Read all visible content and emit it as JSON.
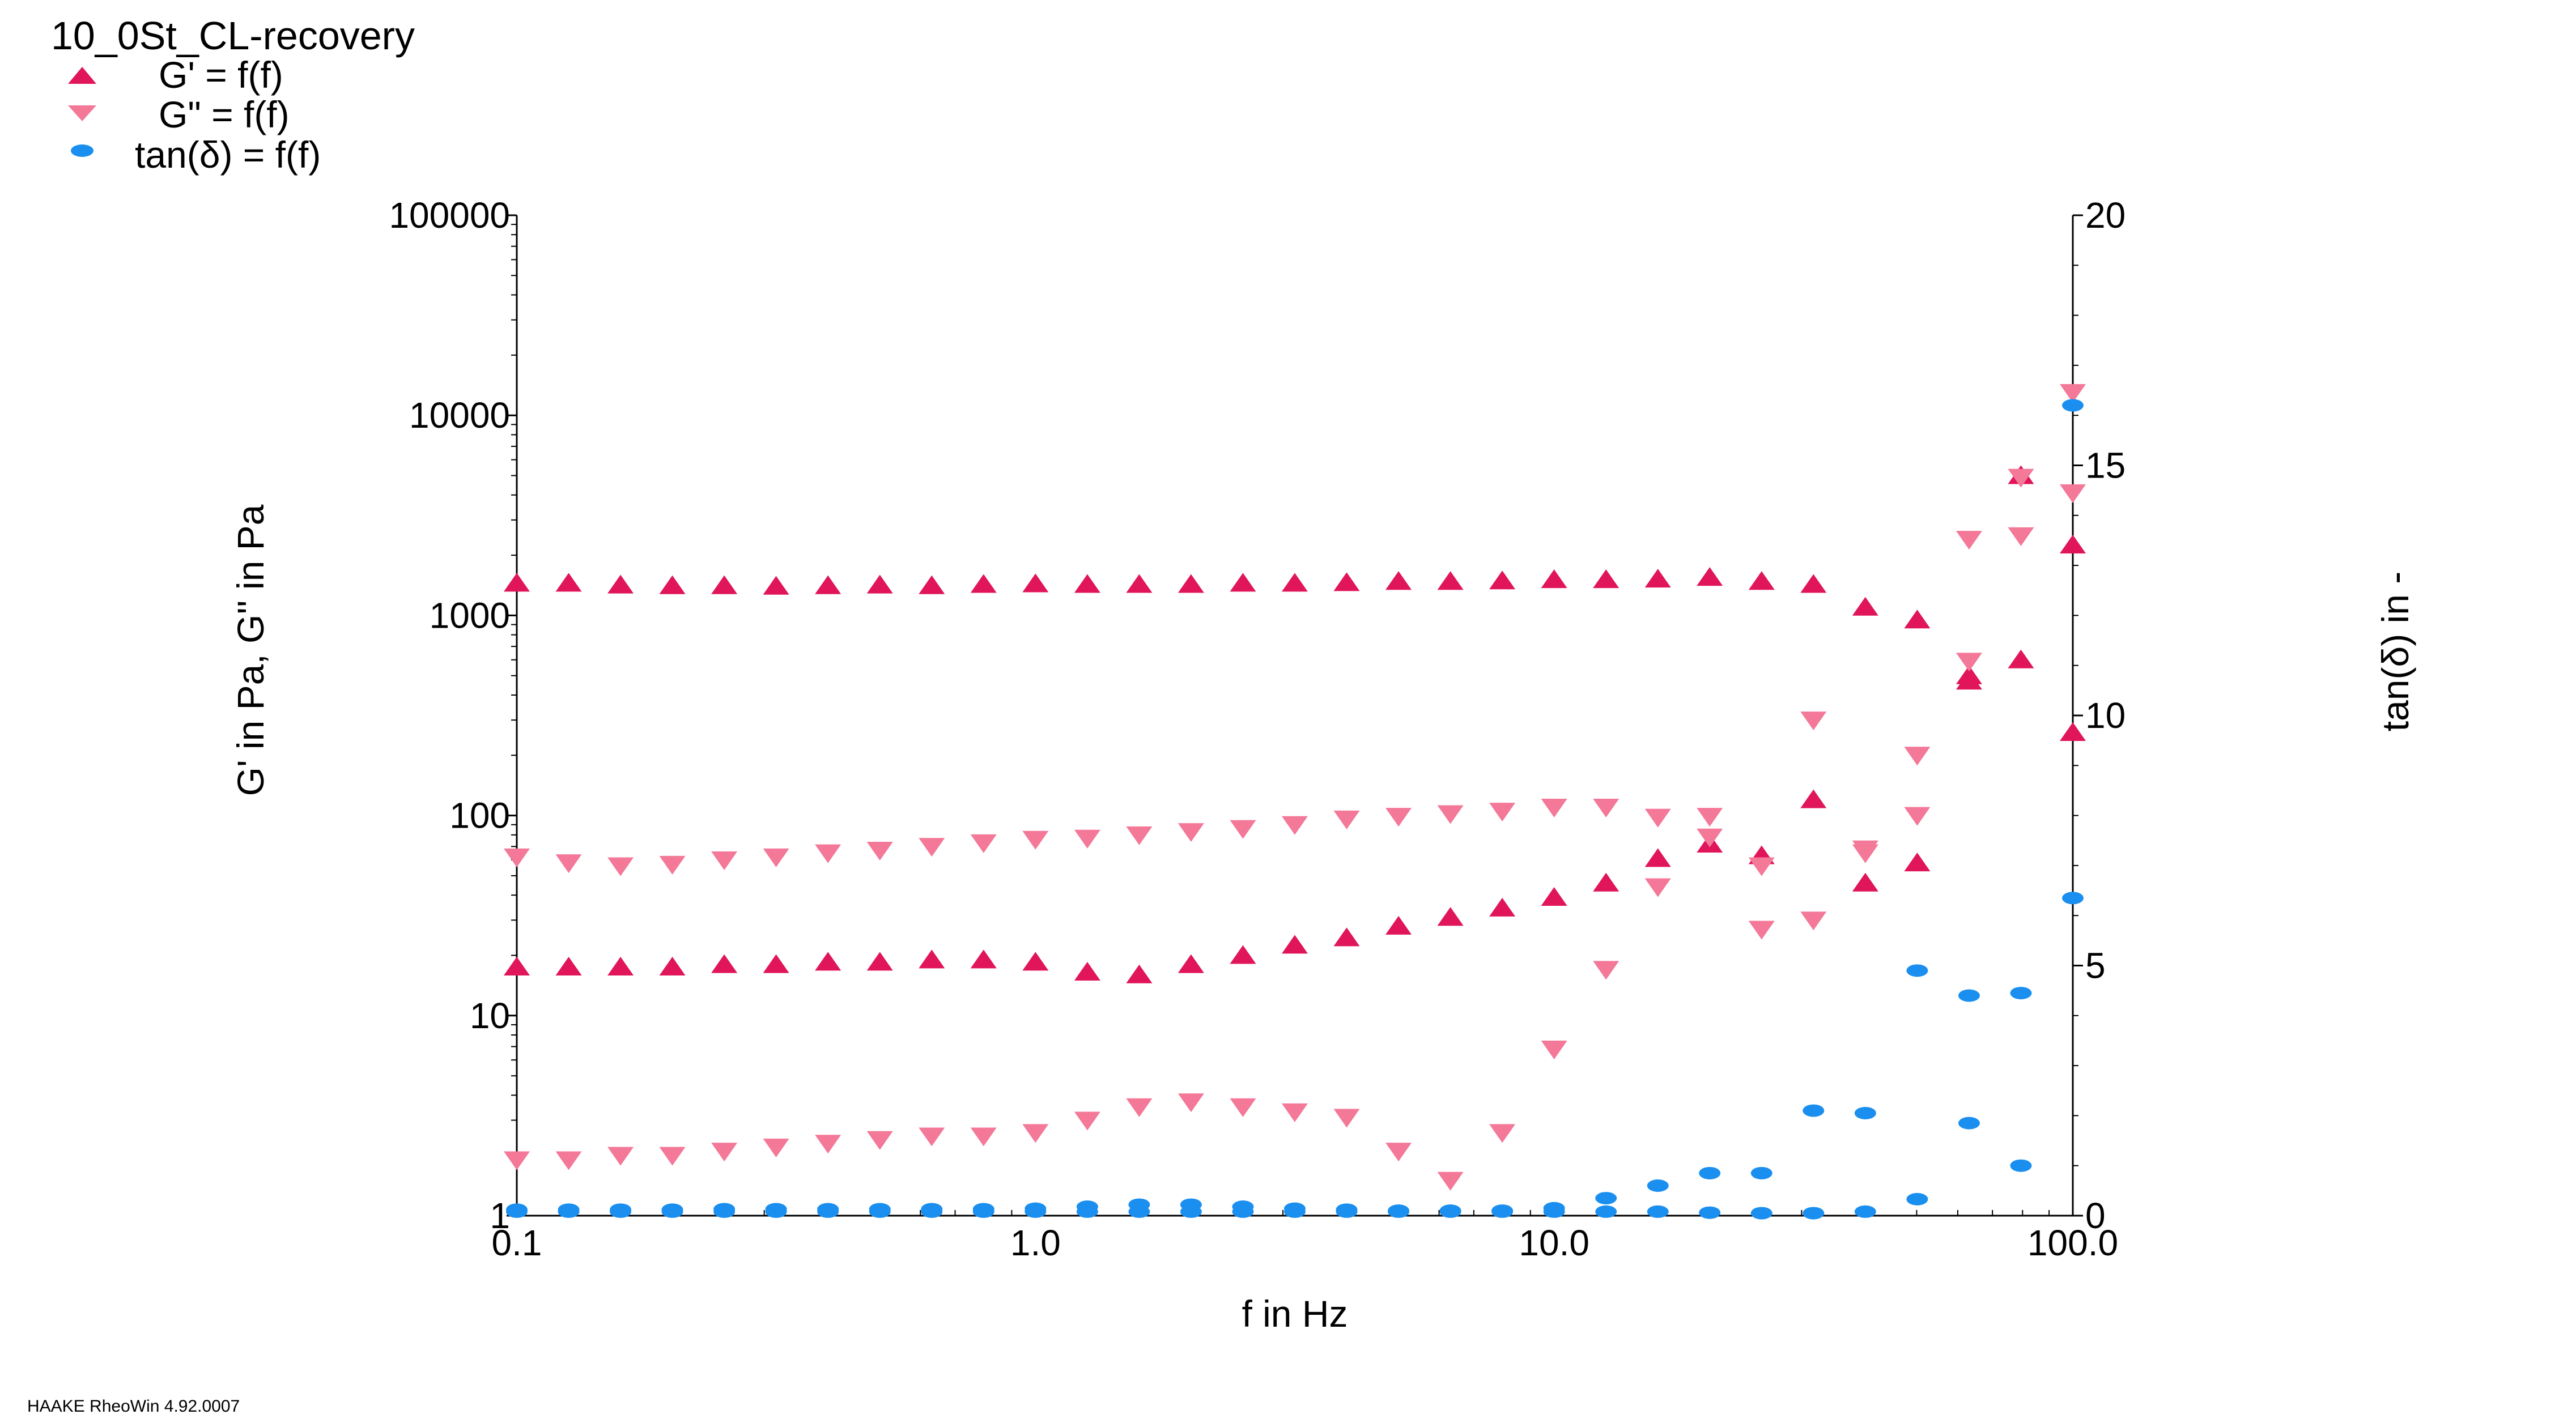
{
  "chart_data": {
    "type": "scatter",
    "legend": {
      "title": "10_0St_CL-recovery",
      "placement": "top-left",
      "entries": [
        {
          "label": "G' = f(f)",
          "marker": "triangle-up",
          "color": "#e0155a"
        },
        {
          "label": "G\" = f(f)",
          "marker": "triangle-down",
          "color": "#f47898"
        },
        {
          "label": "tan(δ) = f(f)",
          "marker": "ellipse",
          "color": "#1a8ff0"
        }
      ]
    },
    "xlabel": "f in Hz",
    "ylabel_left": "G' in Pa, G'' in Pa",
    "ylabel_right": "tan(δ) in -",
    "x_scale": "log",
    "xlim": [
      0.1,
      100.0
    ],
    "x_tick_labels": [
      "0.1",
      "1.0",
      "10.0",
      "100.0"
    ],
    "y_left_scale": "log",
    "y_left_lim": [
      1,
      100000
    ],
    "y_left_tick_labels": [
      "1",
      "10",
      "100",
      "1000",
      "10000",
      "100000"
    ],
    "y_right_scale": "linear",
    "y_right_lim": [
      0,
      20
    ],
    "y_right_tick_labels": [
      "0",
      "5",
      "10",
      "15",
      "20"
    ],
    "grid": false,
    "colors": {
      "G_prime": "#e0155a",
      "G_double_prime": "#f47898",
      "tan_delta": "#1a8ff0"
    },
    "series": [
      {
        "name": "G' = f(f)",
        "axis": "left",
        "marker": "triangle-up",
        "color": "#e0155a",
        "x": [
          0.1,
          0.1259,
          0.1585,
          0.1995,
          0.2512,
          0.3162,
          0.3981,
          0.5012,
          0.631,
          0.7943,
          1.0,
          1.259,
          1.585,
          1.995,
          2.512,
          3.162,
          3.981,
          5.012,
          6.31,
          7.943,
          10.0,
          12.59,
          15.85,
          19.95,
          25.12,
          31.62,
          39.81,
          50.12,
          63.1,
          79.43,
          100.0
        ],
        "y": [
          1450,
          1450,
          1420,
          1410,
          1410,
          1400,
          1410,
          1420,
          1410,
          1430,
          1440,
          1430,
          1430,
          1430,
          1450,
          1450,
          1460,
          1480,
          1480,
          1490,
          1510,
          1510,
          1520,
          1550,
          1480,
          1430,
          1100,
          950,
          500,
          600,
          2250
        ]
      },
      {
        "name": "G' = f(f)",
        "axis": "left",
        "marker": "triangle-up",
        "color": "#e0155a",
        "x": [
          0.1,
          0.1259,
          0.1585,
          0.1995,
          0.2512,
          0.3162,
          0.3981,
          0.5012,
          0.631,
          0.7943,
          1.0,
          1.259,
          1.585,
          1.995,
          2.512,
          3.162,
          3.981,
          5.012,
          6.31,
          7.943,
          10.0,
          12.59,
          15.85,
          19.95,
          25.12,
          31.62,
          39.81,
          50.12,
          63.1,
          79.43,
          100.0
        ],
        "y": [
          17.5,
          17.5,
          17.5,
          17.5,
          18,
          18,
          18.5,
          18.5,
          19,
          19,
          18.5,
          16.5,
          16,
          18,
          20,
          22.5,
          24.5,
          28,
          31,
          34.5,
          39,
          46,
          61,
          72,
          63,
          120,
          46,
          58,
          470,
          5000,
          260
        ]
      },
      {
        "name": "G\" = f(f)",
        "axis": "left",
        "marker": "triangle-down",
        "color": "#f47898",
        "x": [
          0.1,
          0.1259,
          0.1585,
          0.1995,
          0.2512,
          0.3162,
          0.3981,
          0.5012,
          0.631,
          0.7943,
          1.0,
          1.259,
          1.585,
          1.995,
          2.512,
          3.162,
          3.981,
          5.012,
          6.31,
          7.943,
          10.0,
          12.59,
          15.85,
          19.95,
          25.12,
          31.62,
          39.81,
          50.12,
          63.1,
          79.43,
          100.0
        ],
        "y": [
          62,
          58,
          56,
          57,
          60,
          62,
          65,
          67,
          70,
          73,
          76,
          77,
          80,
          83,
          86,
          90,
          96,
          99,
          102,
          105,
          110,
          110,
          98,
          99,
          56,
          300,
          68,
          200,
          2400,
          2500,
          13000
        ]
      },
      {
        "name": "G\" = f(f)",
        "axis": "left",
        "marker": "triangle-down",
        "color": "#f47898",
        "x": [
          0.1,
          0.1259,
          0.1585,
          0.1995,
          0.2512,
          0.3162,
          0.3981,
          0.5012,
          0.631,
          0.7943,
          1.0,
          1.259,
          1.585,
          1.995,
          2.512,
          3.162,
          3.981,
          5.012,
          6.31,
          7.943,
          10.0,
          12.59,
          15.85,
          19.95,
          25.12,
          31.62,
          39.81,
          50.12,
          63.1,
          79.43,
          100.0
        ],
        "y": [
          1.9,
          1.9,
          2.0,
          2.0,
          2.1,
          2.2,
          2.3,
          2.4,
          2.5,
          2.5,
          2.6,
          3.0,
          3.5,
          3.7,
          3.5,
          3.3,
          3.1,
          2.1,
          1.5,
          2.6,
          6.8,
          17,
          44,
          78,
          27,
          30,
          65,
          100,
          590,
          4900,
          4100
        ]
      },
      {
        "name": "tan(δ) = f(f)",
        "axis": "right",
        "marker": "ellipse",
        "color": "#1a8ff0",
        "x": [
          0.1,
          0.1259,
          0.1585,
          0.1995,
          0.2512,
          0.3162,
          0.3981,
          0.5012,
          0.631,
          0.7943,
          1.0,
          1.259,
          1.585,
          1.995,
          2.512,
          3.162,
          3.981,
          5.012,
          6.31,
          7.943,
          10.0,
          12.59,
          15.85,
          19.95,
          25.12,
          31.62,
          39.81,
          50.12,
          63.1,
          79.43,
          100.0
        ],
        "y": [
          0.08,
          0.08,
          0.08,
          0.08,
          0.08,
          0.08,
          0.08,
          0.08,
          0.08,
          0.08,
          0.08,
          0.08,
          0.08,
          0.08,
          0.08,
          0.08,
          0.08,
          0.08,
          0.08,
          0.08,
          0.08,
          0.08,
          0.08,
          0.06,
          0.05,
          0.05,
          0.08,
          0.33,
          1.85,
          1.0,
          16.2
        ]
      },
      {
        "name": "tan(δ) = f(f)",
        "axis": "right",
        "marker": "ellipse",
        "color": "#1a8ff0",
        "x": [
          0.1,
          0.1259,
          0.1585,
          0.1995,
          0.2512,
          0.3162,
          0.3981,
          0.5012,
          0.631,
          0.7943,
          1.0,
          1.259,
          1.585,
          1.995,
          2.512,
          3.162,
          3.981,
          5.012,
          6.31,
          7.943,
          10.0,
          12.59,
          15.85,
          19.95,
          25.12,
          31.62,
          39.81,
          50.12,
          63.1,
          79.43,
          100.0
        ],
        "y": [
          0.12,
          0.12,
          0.12,
          0.12,
          0.13,
          0.13,
          0.13,
          0.13,
          0.13,
          0.13,
          0.14,
          0.18,
          0.22,
          0.22,
          0.18,
          0.14,
          0.12,
          0.1,
          0.1,
          0.1,
          0.15,
          0.35,
          0.6,
          0.85,
          0.85,
          2.1,
          2.05,
          4.9,
          4.4,
          4.45,
          6.35
        ]
      }
    ]
  },
  "footer": {
    "software": "HAAKE RheoWin 4.92.0007"
  }
}
